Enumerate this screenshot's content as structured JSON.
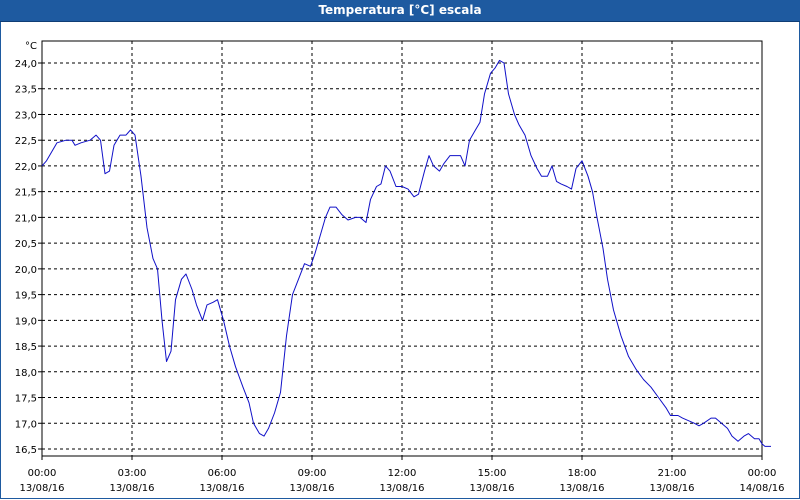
{
  "window": {
    "title": "Temperatura [°C] escala"
  },
  "chart_data": {
    "type": "line",
    "unit_label": "°C",
    "ylim": [
      16.5,
      24.0
    ],
    "y_ticks": [
      "24,0",
      "23,5",
      "23,0",
      "22,5",
      "22,0",
      "21,5",
      "21,0",
      "20,5",
      "20,0",
      "19,5",
      "19,0",
      "18,5",
      "18,0",
      "17,5",
      "17,0",
      "16,5"
    ],
    "y_tick_values": [
      24.0,
      23.5,
      23.0,
      22.5,
      22.0,
      21.5,
      21.0,
      20.5,
      20.0,
      19.5,
      19.0,
      18.5,
      18.0,
      17.5,
      17.0,
      16.5
    ],
    "x_range_hours": [
      0,
      24
    ],
    "x_ticks": [
      {
        "time": "00:00",
        "date": "13/08/16",
        "hour": 0
      },
      {
        "time": "03:00",
        "date": "13/08/16",
        "hour": 3
      },
      {
        "time": "06:00",
        "date": "13/08/16",
        "hour": 6
      },
      {
        "time": "09:00",
        "date": "13/08/16",
        "hour": 9
      },
      {
        "time": "12:00",
        "date": "13/08/16",
        "hour": 12
      },
      {
        "time": "15:00",
        "date": "13/08/16",
        "hour": 15
      },
      {
        "time": "18:00",
        "date": "13/08/16",
        "hour": 18
      },
      {
        "time": "21:00",
        "date": "13/08/16",
        "hour": 21
      },
      {
        "time": "00:00",
        "date": "14/08/16",
        "hour": 24
      }
    ],
    "grid": true,
    "line_color": "#1010c8",
    "series": [
      {
        "points": [
          [
            0.0,
            22.0
          ],
          [
            0.15,
            22.1
          ],
          [
            0.5,
            22.45
          ],
          [
            0.8,
            22.5
          ],
          [
            1.0,
            22.5
          ],
          [
            1.1,
            22.4
          ],
          [
            1.3,
            22.45
          ],
          [
            1.6,
            22.5
          ],
          [
            1.8,
            22.6
          ],
          [
            1.95,
            22.5
          ],
          [
            2.1,
            21.85
          ],
          [
            2.25,
            21.9
          ],
          [
            2.4,
            22.4
          ],
          [
            2.6,
            22.6
          ],
          [
            2.8,
            22.6
          ],
          [
            2.95,
            22.7
          ],
          [
            3.1,
            22.6
          ],
          [
            3.3,
            21.8
          ],
          [
            3.5,
            20.8
          ],
          [
            3.7,
            20.2
          ],
          [
            3.85,
            20.0
          ],
          [
            4.0,
            19.0
          ],
          [
            4.15,
            18.2
          ],
          [
            4.3,
            18.4
          ],
          [
            4.45,
            19.4
          ],
          [
            4.65,
            19.8
          ],
          [
            4.8,
            19.9
          ],
          [
            5.0,
            19.6
          ],
          [
            5.15,
            19.3
          ],
          [
            5.35,
            19.0
          ],
          [
            5.5,
            19.3
          ],
          [
            5.7,
            19.35
          ],
          [
            5.85,
            19.4
          ],
          [
            6.05,
            19.0
          ],
          [
            6.25,
            18.5
          ],
          [
            6.45,
            18.1
          ],
          [
            6.7,
            17.7
          ],
          [
            6.9,
            17.4
          ],
          [
            7.05,
            17.0
          ],
          [
            7.25,
            16.8
          ],
          [
            7.4,
            16.75
          ],
          [
            7.55,
            16.9
          ],
          [
            7.75,
            17.2
          ],
          [
            7.95,
            17.6
          ],
          [
            8.15,
            18.7
          ],
          [
            8.35,
            19.5
          ],
          [
            8.55,
            19.8
          ],
          [
            8.75,
            20.1
          ],
          [
            8.95,
            20.05
          ],
          [
            9.1,
            20.3
          ],
          [
            9.25,
            20.6
          ],
          [
            9.45,
            21.0
          ],
          [
            9.6,
            21.2
          ],
          [
            9.8,
            21.2
          ],
          [
            10.0,
            21.05
          ],
          [
            10.2,
            20.95
          ],
          [
            10.45,
            21.0
          ],
          [
            10.6,
            21.0
          ],
          [
            10.8,
            20.9
          ],
          [
            10.95,
            21.35
          ],
          [
            11.15,
            21.6
          ],
          [
            11.3,
            21.65
          ],
          [
            11.45,
            22.0
          ],
          [
            11.6,
            21.9
          ],
          [
            11.8,
            21.6
          ],
          [
            12.0,
            21.6
          ],
          [
            12.2,
            21.55
          ],
          [
            12.4,
            21.4
          ],
          [
            12.55,
            21.45
          ],
          [
            12.75,
            21.9
          ],
          [
            12.9,
            22.2
          ],
          [
            13.05,
            22.0
          ],
          [
            13.25,
            21.9
          ],
          [
            13.4,
            22.05
          ],
          [
            13.6,
            22.2
          ],
          [
            13.8,
            22.2
          ],
          [
            13.95,
            22.2
          ],
          [
            14.1,
            22.0
          ],
          [
            14.25,
            22.5
          ],
          [
            14.45,
            22.7
          ],
          [
            14.6,
            22.85
          ],
          [
            14.75,
            23.4
          ],
          [
            14.95,
            23.8
          ],
          [
            15.1,
            23.9
          ],
          [
            15.25,
            24.05
          ],
          [
            15.4,
            24.0
          ],
          [
            15.55,
            23.4
          ],
          [
            15.75,
            23.0
          ],
          [
            15.9,
            22.8
          ],
          [
            16.1,
            22.6
          ],
          [
            16.3,
            22.2
          ],
          [
            16.5,
            21.95
          ],
          [
            16.65,
            21.8
          ],
          [
            16.85,
            21.8
          ],
          [
            17.0,
            22.0
          ],
          [
            17.15,
            21.7
          ],
          [
            17.3,
            21.65
          ],
          [
            17.5,
            21.6
          ],
          [
            17.65,
            21.55
          ],
          [
            17.8,
            21.95
          ],
          [
            18.0,
            22.1
          ],
          [
            18.2,
            21.8
          ],
          [
            18.35,
            21.5
          ],
          [
            18.5,
            21.0
          ],
          [
            18.7,
            20.4
          ],
          [
            18.85,
            19.8
          ],
          [
            19.05,
            19.2
          ],
          [
            19.3,
            18.7
          ],
          [
            19.55,
            18.3
          ],
          [
            19.8,
            18.05
          ],
          [
            20.05,
            17.85
          ],
          [
            20.3,
            17.7
          ],
          [
            20.55,
            17.5
          ],
          [
            20.8,
            17.3
          ],
          [
            20.95,
            17.15
          ],
          [
            21.2,
            17.15
          ],
          [
            21.35,
            17.1
          ],
          [
            21.55,
            17.05
          ],
          [
            21.75,
            17.0
          ],
          [
            21.9,
            16.95
          ],
          [
            22.05,
            17.0
          ],
          [
            22.3,
            17.1
          ],
          [
            22.45,
            17.1
          ],
          [
            22.65,
            17.0
          ],
          [
            22.85,
            16.9
          ],
          [
            23.0,
            16.75
          ],
          [
            23.2,
            16.65
          ],
          [
            23.4,
            16.75
          ],
          [
            23.55,
            16.8
          ],
          [
            23.75,
            16.7
          ],
          [
            23.9,
            16.7
          ],
          [
            24.0,
            16.6
          ],
          [
            24.1,
            16.55
          ],
          [
            24.3,
            16.55
          ]
        ]
      }
    ]
  }
}
